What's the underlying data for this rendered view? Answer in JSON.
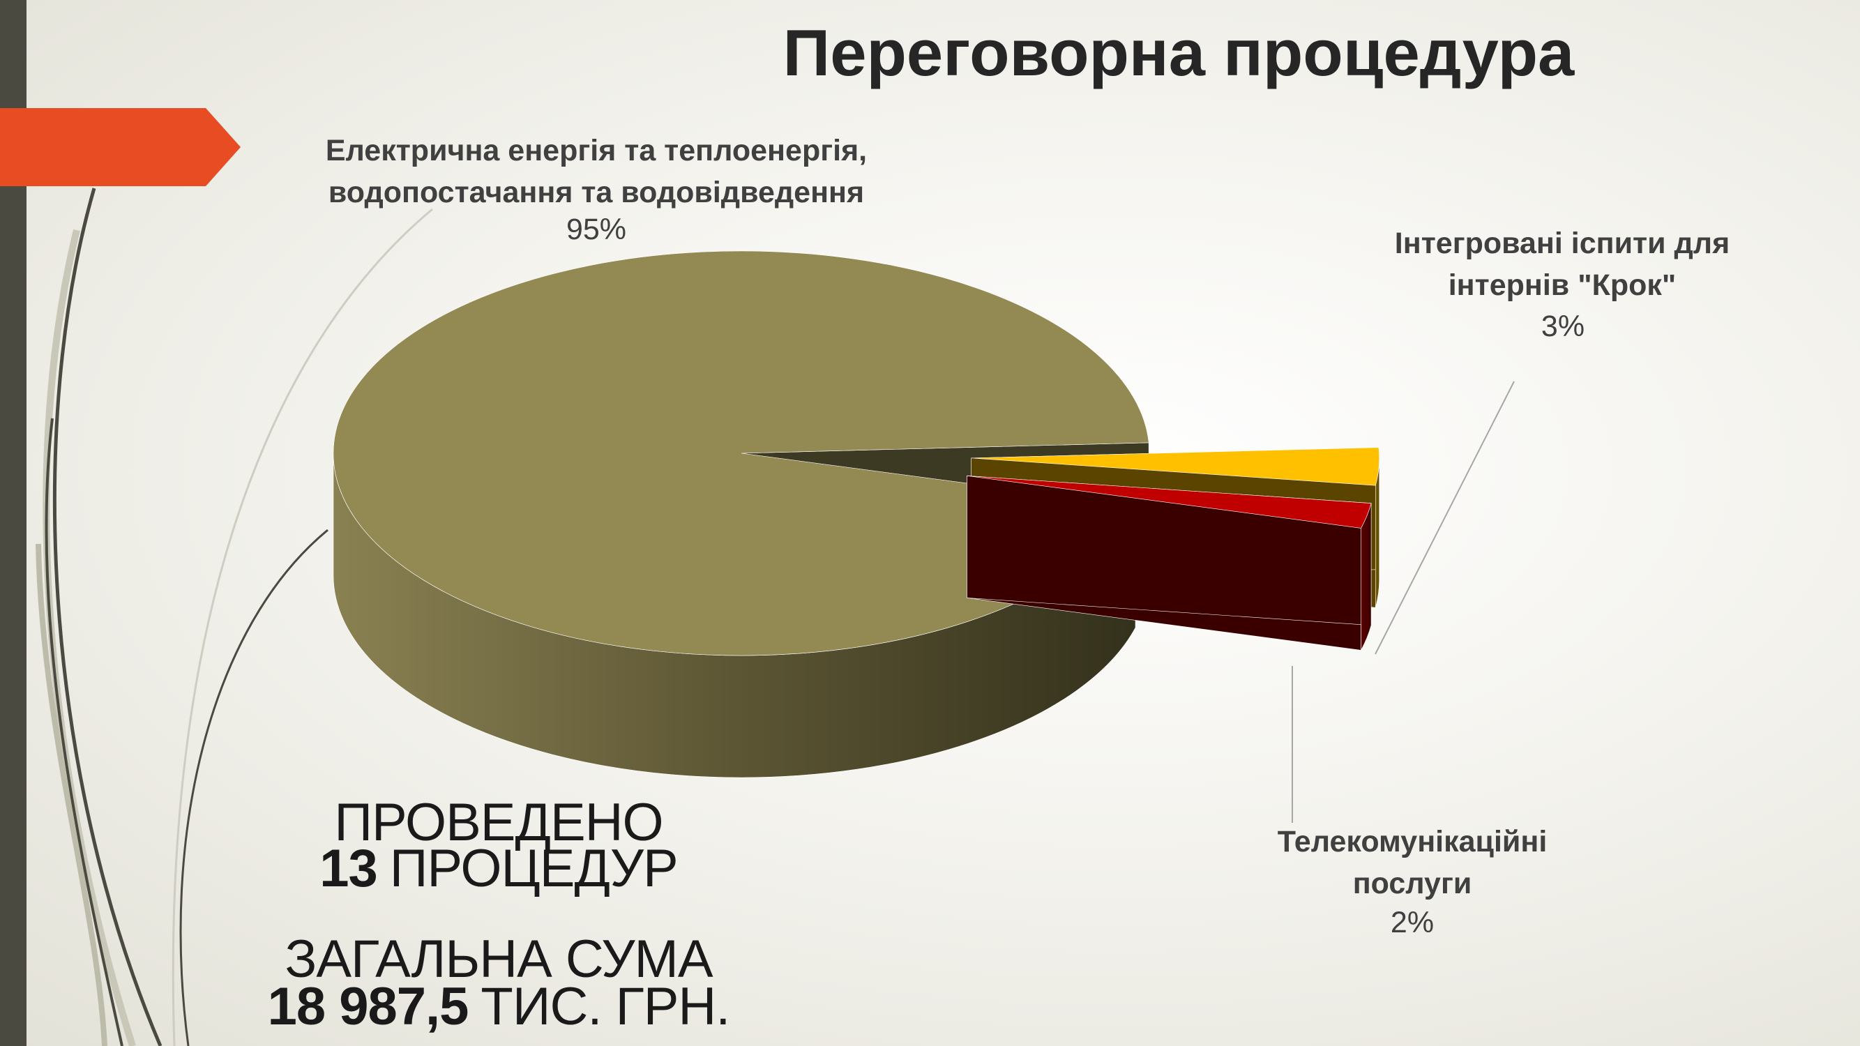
{
  "chart_data": {
    "type": "pie",
    "title": "Переговорна процедура",
    "categories": [
      "Електрична енергія та теплоенергія, водопостачання та водовідведення",
      "Інтегровані іспити для інтернів \"Крок\"",
      "Телекомунікаційні послуги"
    ],
    "values": [
      95,
      3,
      2
    ],
    "value_labels": [
      "95%",
      "3%",
      "2%"
    ],
    "colors": [
      "#938953",
      "#ffc000",
      "#c00000"
    ]
  },
  "summary": {
    "procedures_text": "ПРОВЕДЕНО",
    "procedures_count": "13",
    "procedures_unit": "ПРОЦЕДУР",
    "total_text": "ЗАГАЛЬНА СУМА",
    "total_amount": "18 987,5",
    "total_unit": "ТИС. ГРН."
  }
}
